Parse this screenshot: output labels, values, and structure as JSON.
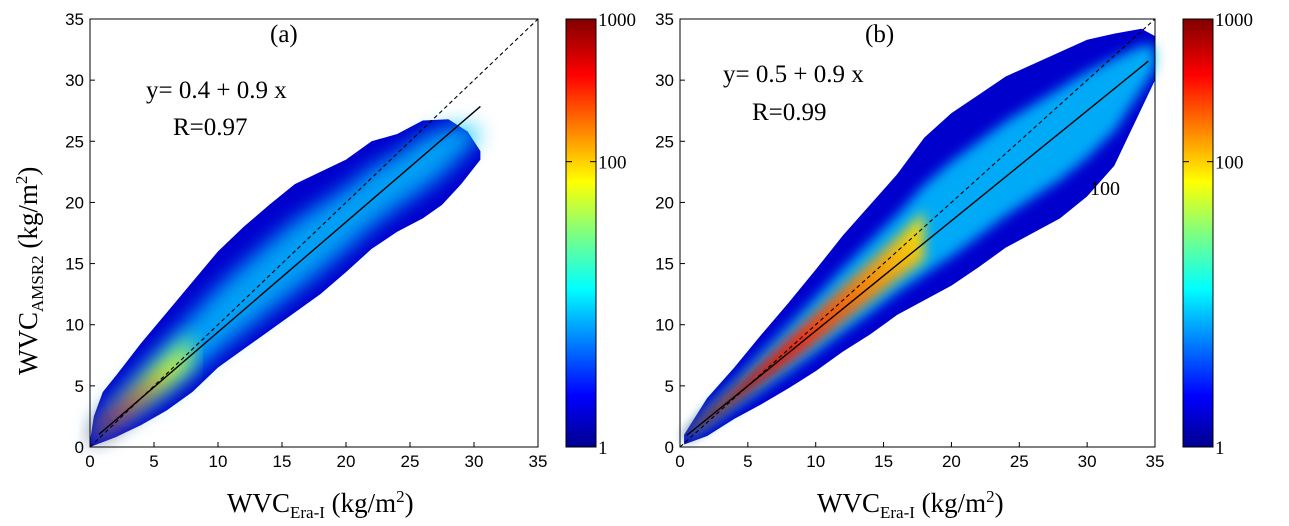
{
  "chart_data": [
    {
      "type": "heatmap",
      "panel_label": "(a)",
      "xlabel": {
        "main": "WVC",
        "sub": "Era-I",
        "unit": " (kg/m",
        "sup": "2",
        "close": ")"
      },
      "ylabel": {
        "main": "WVC",
        "sub": "AMSR2",
        "unit": " (kg/m",
        "sup": "2",
        "close": ")"
      },
      "xlim": [
        0,
        35
      ],
      "ylim": [
        0,
        35
      ],
      "xticks": [
        "0",
        "5",
        "10",
        "15",
        "20",
        "25",
        "30",
        "35"
      ],
      "yticks": [
        "0",
        "5",
        "10",
        "15",
        "20",
        "25",
        "30",
        "35"
      ],
      "equation": "y= 0.4 + 0.9 x",
      "r_text": "R=0.97",
      "fit": {
        "intercept": 0.4,
        "slope": 0.9,
        "x_range": [
          0.7,
          30.5
        ]
      },
      "identity_line": {
        "x_range": [
          0,
          35
        ]
      },
      "density": {
        "hot_region": [
          1,
          7
        ],
        "upper_envelope": [
          [
            0,
            0.5
          ],
          [
            0.3,
            2.5
          ],
          [
            1,
            4.5
          ],
          [
            2,
            5.8
          ],
          [
            4,
            8.5
          ],
          [
            6,
            11
          ],
          [
            8,
            13.5
          ],
          [
            10,
            16
          ],
          [
            12,
            18
          ],
          [
            14,
            19.8
          ],
          [
            16,
            21.5
          ],
          [
            18,
            22.5
          ],
          [
            20,
            23.5
          ],
          [
            22,
            25
          ],
          [
            24,
            25.6
          ],
          [
            26,
            26.7
          ],
          [
            28,
            26.8
          ],
          [
            29.5,
            25.8
          ],
          [
            30.5,
            24.2
          ]
        ],
        "lower_envelope": [
          [
            0,
            0
          ],
          [
            2,
            0.8
          ],
          [
            4,
            1.8
          ],
          [
            6,
            3
          ],
          [
            8,
            4.5
          ],
          [
            10,
            6.5
          ],
          [
            12,
            8
          ],
          [
            14,
            9.5
          ],
          [
            16,
            11
          ],
          [
            18,
            12.5
          ],
          [
            20,
            14.3
          ],
          [
            22,
            16.2
          ],
          [
            24,
            17.6
          ],
          [
            26,
            18.7
          ],
          [
            27.5,
            19.8
          ],
          [
            29,
            21.5
          ],
          [
            30.5,
            23.5
          ]
        ]
      },
      "colorbar": {
        "scale": "log",
        "range": [
          1,
          1000
        ],
        "tick_labels": [
          "1",
          "100",
          "1000"
        ]
      }
    },
    {
      "type": "heatmap",
      "panel_label": "(b)",
      "xlabel": {
        "main": "WVC",
        "sub": "Era-I",
        "unit": " (kg/m",
        "sup": "2",
        "close": ")"
      },
      "xlim": [
        0,
        35
      ],
      "ylim": [
        0,
        35
      ],
      "xticks": [
        "0",
        "5",
        "10",
        "15",
        "20",
        "25",
        "30",
        "35"
      ],
      "yticks": [
        "0",
        "5",
        "10",
        "15",
        "20",
        "25",
        "30",
        "35"
      ],
      "equation": "y= 0.5 + 0.9 x",
      "r_text": "R=0.99",
      "annotation": "100",
      "fit": {
        "intercept": 0.5,
        "slope": 0.9,
        "x_range": [
          0.5,
          34.5
        ]
      },
      "identity_line": {
        "x_range": [
          0,
          35
        ]
      },
      "density": {
        "hot_region": [
          1,
          18
        ],
        "upper_envelope": [
          [
            0.3,
            1
          ],
          [
            2,
            4
          ],
          [
            4,
            6.5
          ],
          [
            6,
            9.2
          ],
          [
            8,
            11.8
          ],
          [
            10,
            14.5
          ],
          [
            12,
            17.3
          ],
          [
            14,
            19.8
          ],
          [
            16,
            22.3
          ],
          [
            18,
            25.3
          ],
          [
            20,
            27.3
          ],
          [
            22,
            28.8
          ],
          [
            24,
            30.3
          ],
          [
            26,
            31.3
          ],
          [
            28,
            32.3
          ],
          [
            30,
            33.3
          ],
          [
            32,
            33.8
          ],
          [
            34,
            34.2
          ],
          [
            35,
            33.6
          ]
        ],
        "lower_envelope": [
          [
            0.3,
            0.2
          ],
          [
            2,
            0.9
          ],
          [
            4,
            2.3
          ],
          [
            6,
            3.5
          ],
          [
            8,
            4.8
          ],
          [
            10,
            6.2
          ],
          [
            12,
            7.8
          ],
          [
            14,
            9.2
          ],
          [
            16,
            10.8
          ],
          [
            18,
            12
          ],
          [
            20,
            13.2
          ],
          [
            22,
            14.7
          ],
          [
            24,
            16.3
          ],
          [
            26,
            17.5
          ],
          [
            28,
            18.7
          ],
          [
            30,
            20.5
          ],
          [
            32,
            23
          ],
          [
            33.5,
            26.5
          ],
          [
            35,
            30
          ]
        ]
      },
      "colorbar": {
        "scale": "log",
        "range": [
          1,
          1000
        ],
        "tick_labels": [
          "1",
          "100",
          "1000"
        ]
      }
    }
  ]
}
